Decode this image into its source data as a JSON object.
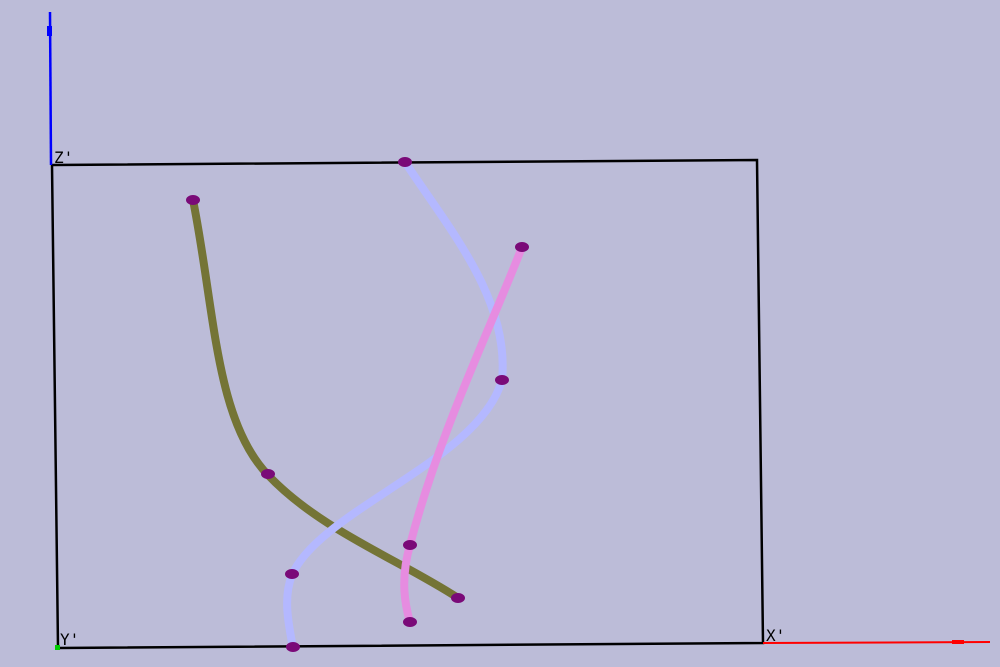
{
  "viewport": {
    "background": "#bcbcd8",
    "frame_color": "#000000",
    "control_point_color": "#7a0a78"
  },
  "axes": {
    "x": {
      "label": "X'",
      "color": "#ff0000"
    },
    "y": {
      "label": "Y'",
      "color": "#00aa00"
    },
    "z": {
      "label": "Z'",
      "color": "#0000ff"
    }
  },
  "curves": [
    {
      "name": "olive-curve",
      "color": "#747436"
    },
    {
      "name": "lavender-curve",
      "color": "#b4b8ff"
    },
    {
      "name": "pink-curve",
      "color": "#e68ce0"
    }
  ]
}
